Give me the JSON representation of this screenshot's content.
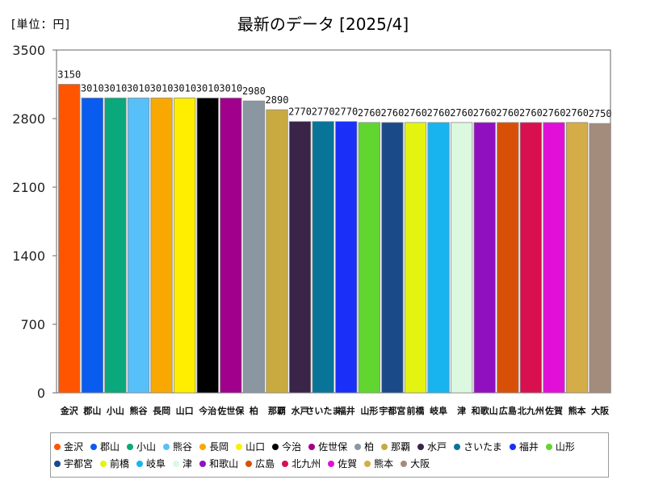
{
  "unit_label": "[単位：円]",
  "title": "最新のデータ [2025/4]",
  "chart_data": {
    "type": "bar",
    "title": "最新のデータ [2025/4]",
    "xlabel": "",
    "ylabel": "円",
    "ylim": [
      0,
      3500
    ],
    "yticks": [
      "0",
      "700",
      "1400",
      "2100",
      "2800",
      "3500"
    ],
    "ytick_values": [
      0,
      700,
      1400,
      2100,
      2800,
      3500
    ],
    "grid": false,
    "legend_position": "bottom",
    "categories": [
      "金沢",
      "郡山",
      "小山",
      "熊谷",
      "長岡",
      "山口",
      "今治",
      "佐世保",
      "柏",
      "那覇",
      "水戸",
      "さいたま",
      "福井",
      "山形",
      "宇都宮",
      "前橋",
      "岐阜",
      "津",
      "和歌山",
      "広島",
      "北九州",
      "佐賀",
      "熊本",
      "大阪"
    ],
    "values": [
      3150,
      3010,
      3010,
      3010,
      3010,
      3010,
      3010,
      3010,
      2980,
      2890,
      2770,
      2770,
      2770,
      2760,
      2760,
      2760,
      2760,
      2760,
      2760,
      2760,
      2760,
      2760,
      2760,
      2750
    ],
    "value_labels": [
      "3150",
      "3010",
      "3010",
      "3010",
      "3010",
      "3010",
      "3010",
      "3010",
      "2980",
      "2890",
      "2770",
      "2770",
      "2770",
      "2760",
      "2760",
      "2760",
      "2760",
      "2760",
      "2760",
      "2760",
      "2760",
      "2760",
      "2760",
      "2750"
    ],
    "colors": [
      "#ff5500",
      "#0a5cf0",
      "#0aa87a",
      "#58c0f8",
      "#f8a800",
      "#ffee00",
      "#000000",
      "#a0008c",
      "#8a96a0",
      "#c8aa40",
      "#3a2448",
      "#087498",
      "#1a30f8",
      "#62d630",
      "#1a4a88",
      "#e4f410",
      "#18b4f0",
      "#dcf8e0",
      "#9010c0",
      "#d85008",
      "#d81050",
      "#e010d8",
      "#d4ac48",
      "#a48c7c"
    ]
  }
}
